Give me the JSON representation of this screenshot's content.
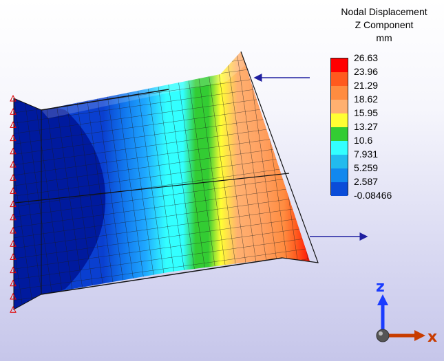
{
  "legend": {
    "title_lines": [
      "Nodal Displacement",
      "Z Component",
      "mm"
    ],
    "ticks": [
      "26.63",
      "23.96",
      "21.29",
      "18.62",
      "15.95",
      "13.27",
      "10.6",
      "7.931",
      "5.259",
      "2.587",
      "-0.08466"
    ],
    "colors": [
      "#ff0000",
      "#ff5a1e",
      "#ff8c40",
      "#ffb070",
      "#ffff33",
      "#33cc33",
      "#33ffff",
      "#22bbee",
      "#1188ee",
      "#0a4cd8",
      "#001a9e"
    ]
  },
  "triad": {
    "z_label": "z",
    "x_label": "x",
    "z_color": "#1a3cff",
    "x_color": "#c83c00"
  },
  "arrows_color": "#1f1fa0",
  "constraint_color": "#e00000"
}
